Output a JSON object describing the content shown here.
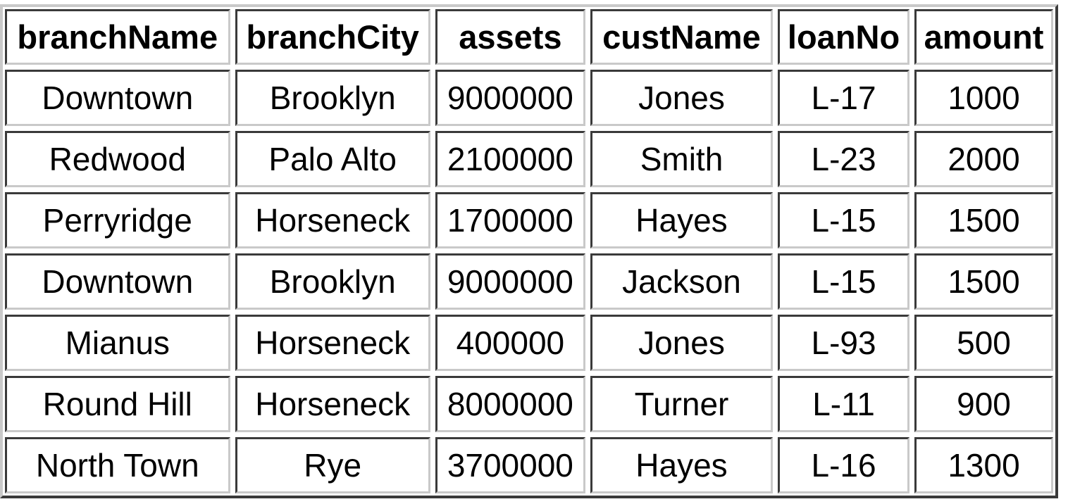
{
  "table": {
    "headers": [
      "branchName",
      "branchCity",
      "assets",
      "custName",
      "loanNo",
      "amount"
    ],
    "rows": [
      [
        "Downtown",
        "Brooklyn",
        "9000000",
        "Jones",
        "L-17",
        "1000"
      ],
      [
        "Redwood",
        "Palo Alto",
        "2100000",
        "Smith",
        "L-23",
        "2000"
      ],
      [
        "Perryridge",
        "Horseneck",
        "1700000",
        "Hayes",
        "L-15",
        "1500"
      ],
      [
        "Downtown",
        "Brooklyn",
        "9000000",
        "Jackson",
        "L-15",
        "1500"
      ],
      [
        "Mianus",
        "Horseneck",
        "400000",
        "Jones",
        "L-93",
        "500"
      ],
      [
        "Round Hill",
        "Horseneck",
        "8000000",
        "Turner",
        "L-11",
        "900"
      ],
      [
        "North Town",
        "Rye",
        "3700000",
        "Hayes",
        "L-16",
        "1300"
      ]
    ]
  },
  "colors": {
    "border_dark": "#3a3a3a",
    "border_light": "#c9c9c9",
    "background": "#ffffff",
    "text": "#000000"
  }
}
